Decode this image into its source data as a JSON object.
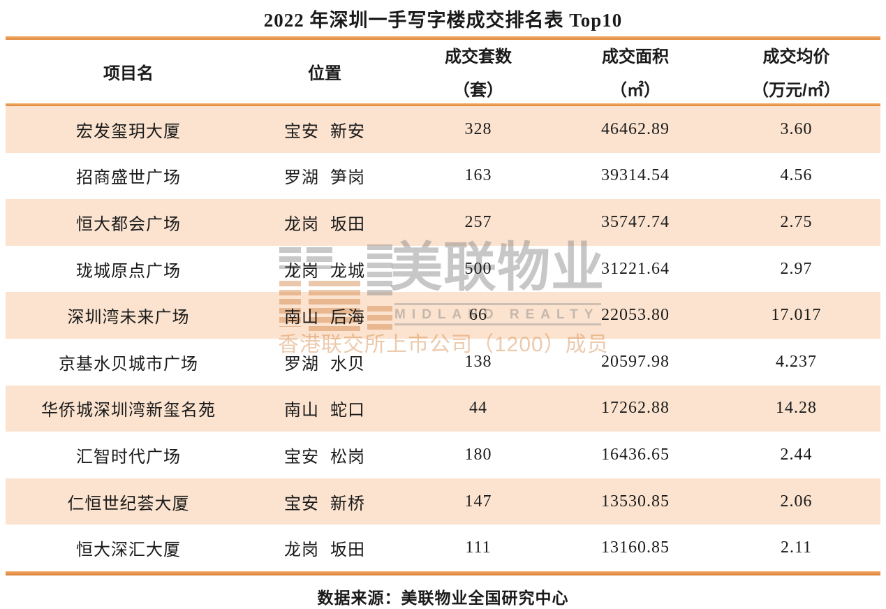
{
  "page": {
    "title": "2022 年深圳一手写字楼成交排名表 Top10",
    "source_note": "数据来源：美联物业全国研究中心"
  },
  "colors": {
    "accent_orange": "#E8914A",
    "row_peach": "#FBE3CF",
    "text_black": "#1A1A1A",
    "watermark_gray": "#C8C8C8",
    "watermark_tan": "#EAC8AB"
  },
  "watermark": {
    "logo_icon": "midland-striped-m-logo",
    "brand_cn": "美联物业",
    "brand_en": "MIDLAND REALTY",
    "membership_line": "香港联交所上市公司（1200）成员"
  },
  "chart_data": {
    "type": "table",
    "title": "2022 年深圳一手写字楼成交排名表 Top10",
    "headers": [
      {
        "t": "项目名",
        "u": ""
      },
      {
        "t": "位置",
        "u": ""
      },
      {
        "t": "成交套数",
        "u": "（套）"
      },
      {
        "t": "成交面积",
        "u": "（㎡）"
      },
      {
        "t": "成交均价",
        "u": "（万元/㎡）"
      }
    ],
    "rows": [
      {
        "name": "宏发玺玥大厦",
        "location": "宝安 新安",
        "units": "328",
        "area": "46462.89",
        "price": "3.60"
      },
      {
        "name": "招商盛世广场",
        "location": "罗湖 笋岗",
        "units": "163",
        "area": "39314.54",
        "price": "4.56"
      },
      {
        "name": "恒大都会广场",
        "location": "龙岗 坂田",
        "units": "257",
        "area": "35747.74",
        "price": "2.75"
      },
      {
        "name": "珑城原点广场",
        "location": "龙岗 龙城",
        "units": "500",
        "area": "31221.64",
        "price": "2.97"
      },
      {
        "name": "深圳湾未来广场",
        "location": "南山 后海",
        "units": "66",
        "area": "22053.80",
        "price": "17.017"
      },
      {
        "name": "京基水贝城市广场",
        "location": "罗湖 水贝",
        "units": "138",
        "area": "20597.98",
        "price": "4.237"
      },
      {
        "name": "华侨城深圳湾新玺名苑",
        "location": "南山 蛇口",
        "units": "44",
        "area": "17262.88",
        "price": "14.28"
      },
      {
        "name": "汇智时代广场",
        "location": "宝安 松岗",
        "units": "180",
        "area": "16436.65",
        "price": "2.44"
      },
      {
        "name": "仁恒世纪荟大厦",
        "location": "宝安 新桥",
        "units": "147",
        "area": "13530.85",
        "price": "2.06"
      },
      {
        "name": "恒大深汇大厦",
        "location": "龙岗 坂田",
        "units": "111",
        "area": "13160.85",
        "price": "2.11"
      }
    ],
    "source": "数据来源：美联物业全国研究中心"
  }
}
